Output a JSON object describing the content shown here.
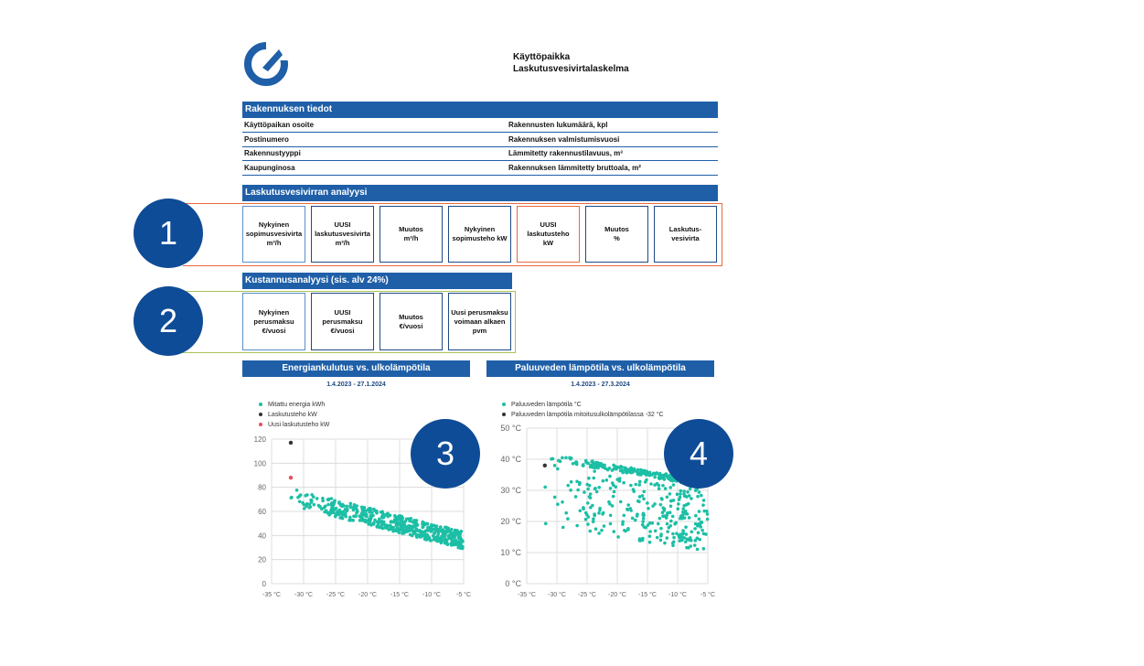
{
  "header": {
    "title_line1": "Käyttöpaikka",
    "title_line2": "Laskutusvesivirtalaskelma"
  },
  "building": {
    "title": "Rakennuksen tiedot",
    "rows": [
      {
        "left": "Käyttöpaikan osoite",
        "right": "Rakennusten lukumäärä, kpl"
      },
      {
        "left": "Postinumero",
        "right": "Rakennuksen valmistumisvuosi"
      },
      {
        "left": "Rakennustyyppi",
        "right": "Lämmitetty rakennustilavuus, m³"
      },
      {
        "left": "Kaupunginosa",
        "right": "Rakennuksen lämmitetty bruttoala, m²"
      }
    ]
  },
  "analysis": {
    "title": "Laskutusvesivirran analyysi",
    "boxes": [
      "Nykyinen\nsopimusvesivirta\nm³/h",
      "UUSI\nlaskutusvesivirta\nm³/h",
      "Muutos\nm³/h",
      "Nykyinen\nsopimusteho kW",
      "UUSI\nlaskutusteho\nkW",
      "Muutos\n%",
      "Laskutus-\nvesivirta"
    ]
  },
  "cost": {
    "title": "Kustannusanalyysi (sis. alv 24%)",
    "boxes": [
      "Nykyinen\nperusmaksu\n€/vuosi",
      "UUSI\nperusmaksu\n€/vuosi",
      "Muutos\n€/vuosi",
      "Uusi perusmaksu\nvoimaan alkaen\npvm"
    ]
  },
  "badges": [
    "1",
    "2",
    "3",
    "4"
  ],
  "colors": {
    "brand_blue": "#1f5fa8",
    "badge_blue": "#0f4c97",
    "highlight_orange": "#e8693c",
    "highlight_green": "#a8c256",
    "teal": "#1cbfa5",
    "dark_point": "#333333",
    "red_point": "#e8505b"
  },
  "chart_data": [
    {
      "type": "scatter",
      "title": "Energiankulutus vs. ulkolämpötila",
      "subtitle": "1.4.2023 - 27.1.2024",
      "xlim": [
        -35,
        -5
      ],
      "ylim": [
        0,
        120
      ],
      "xticks": [
        "-35 °C",
        "-30 °C",
        "-25 °C",
        "-20 °C",
        "-15 °C",
        "-10 °C",
        "-5 °C"
      ],
      "yticks": [
        "0",
        "20",
        "40",
        "60",
        "80",
        "100",
        "120"
      ],
      "series": [
        {
          "name": "Mitattu energia kWh",
          "color": "#1cbfa5",
          "trend": {
            "x_from": -32,
            "x_to": -5,
            "y_from": 72,
            "y_to": 36,
            "spread": 9
          }
        },
        {
          "name": "Laskutusteho kW",
          "color": "#333333",
          "points": [
            [
              -32,
              117
            ]
          ]
        },
        {
          "name": "Uusi laskutusteho kW",
          "color": "#e8505b",
          "points": [
            [
              -32,
              88
            ]
          ]
        }
      ]
    },
    {
      "type": "scatter",
      "title": "Paluuveden lämpötila vs. ulkolämpötila",
      "subtitle": "1.4.2023 - 27.3.2024",
      "xlim": [
        -35,
        -5
      ],
      "ylim": [
        0,
        50
      ],
      "xticks": [
        "-35 °C",
        "-30 °C",
        "-25 °C",
        "-20 °C",
        "-15 °C",
        "-10 °C",
        "-5 °C"
      ],
      "yticks": [
        "0 °C",
        "10 °C",
        "20 °C",
        "30 °C",
        "40 °C",
        "50 °C"
      ],
      "series": [
        {
          "name": "Paluuveden lämpötila °C",
          "color": "#1cbfa5",
          "trend": {
            "x_from": -32,
            "x_to": -5,
            "y_from": 39,
            "y_to": 30,
            "spread": 10
          }
        },
        {
          "name": "Paluuveden lämpötila mitoitusulkolämpötilassa -32 °C",
          "color": "#333333",
          "points": [
            [
              -32,
              38
            ]
          ]
        }
      ]
    }
  ]
}
